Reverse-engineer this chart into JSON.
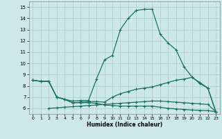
{
  "xlabel": "Humidex (Indice chaleur)",
  "xlim": [
    -0.5,
    23.5
  ],
  "ylim": [
    5.5,
    15.5
  ],
  "xticks": [
    0,
    1,
    2,
    3,
    4,
    5,
    6,
    7,
    8,
    9,
    10,
    11,
    12,
    13,
    14,
    15,
    16,
    17,
    18,
    19,
    20,
    21,
    22,
    23
  ],
  "yticks": [
    6,
    7,
    8,
    9,
    10,
    11,
    12,
    13,
    14,
    15
  ],
  "bg_color": "#cce8e8",
  "grid_color": "#aacccc",
  "line_color": "#1a7060",
  "line1_x": [
    0,
    1,
    2,
    3,
    4,
    5,
    6,
    7,
    8,
    9,
    10,
    11,
    12,
    13,
    14,
    15,
    16,
    17,
    18,
    19,
    20,
    21,
    22,
    23
  ],
  "line1_y": [
    8.5,
    8.4,
    8.4,
    7.0,
    6.8,
    6.65,
    6.7,
    6.7,
    8.6,
    10.3,
    10.7,
    13.0,
    14.0,
    14.7,
    14.8,
    14.8,
    12.6,
    11.8,
    11.2,
    9.7,
    8.8,
    8.2,
    7.8,
    5.7
  ],
  "line2_x": [
    0,
    1,
    2,
    3,
    4,
    5,
    6,
    7,
    8,
    9,
    10,
    11,
    12,
    13,
    14,
    15,
    16,
    17,
    18,
    19,
    20,
    21,
    22,
    23
  ],
  "line2_y": [
    8.5,
    8.4,
    8.4,
    7.0,
    6.8,
    6.5,
    6.55,
    6.6,
    6.6,
    6.55,
    7.0,
    7.3,
    7.5,
    7.7,
    7.8,
    7.9,
    8.1,
    8.3,
    8.5,
    8.6,
    8.75,
    8.3,
    7.8,
    5.7
  ],
  "line3_x": [
    0,
    1,
    2,
    3,
    4,
    5,
    6,
    7,
    8,
    9,
    10,
    11,
    12,
    13,
    14,
    15,
    16,
    17,
    18,
    19,
    20,
    21,
    22,
    23
  ],
  "line3_y": [
    8.5,
    8.4,
    8.4,
    7.0,
    6.8,
    6.5,
    6.5,
    6.5,
    6.45,
    6.3,
    6.25,
    6.2,
    6.2,
    6.2,
    6.2,
    6.2,
    6.1,
    6.0,
    5.95,
    5.9,
    5.85,
    5.82,
    5.8,
    5.7
  ],
  "line4_x": [
    2,
    3,
    4,
    5,
    6,
    7,
    8,
    9,
    10,
    11,
    12,
    13,
    14,
    15,
    16,
    17,
    18,
    19,
    20,
    21,
    22,
    23
  ],
  "line4_y": [
    6.0,
    6.05,
    6.1,
    6.15,
    6.2,
    6.25,
    6.3,
    6.35,
    6.4,
    6.45,
    6.5,
    6.55,
    6.6,
    6.65,
    6.65,
    6.6,
    6.55,
    6.5,
    6.45,
    6.4,
    6.35,
    5.7
  ]
}
